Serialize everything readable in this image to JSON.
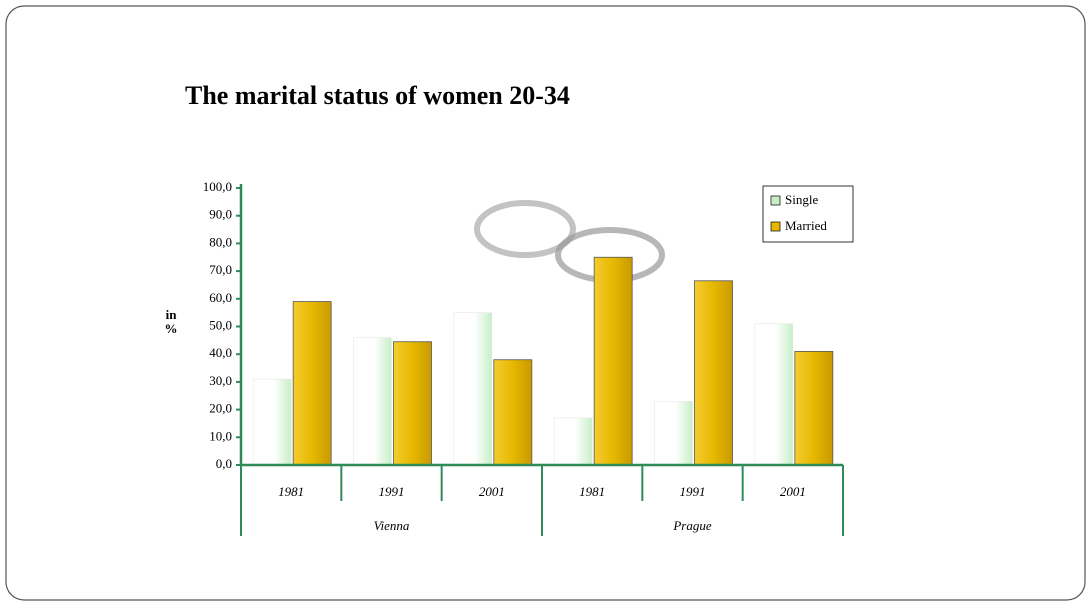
{
  "chart_data": {
    "type": "bar",
    "title": "The marital status of women 20-34",
    "y_label": "in %",
    "groups": [
      {
        "name": "Vienna",
        "categories": [
          "1981",
          "1991",
          "2001"
        ]
      },
      {
        "name": "Prague",
        "categories": [
          "1981",
          "1991",
          "2001"
        ]
      }
    ],
    "series": [
      {
        "name": "Single",
        "color": "#c6efc6",
        "values": [
          31,
          46,
          55,
          17,
          23,
          51
        ]
      },
      {
        "name": "Married",
        "color": "#e6b800",
        "values": [
          59,
          44.5,
          38,
          75,
          66.5,
          41
        ]
      }
    ],
    "ylim": [
      0,
      100
    ],
    "yticks": [
      {
        "value": 0,
        "label": "0,0"
      },
      {
        "value": 10,
        "label": "10,0"
      },
      {
        "value": 20,
        "label": "20,0"
      },
      {
        "value": 30,
        "label": "30,0"
      },
      {
        "value": 40,
        "label": "40,0"
      },
      {
        "value": 50,
        "label": "50,0"
      },
      {
        "value": 60,
        "label": "60,0"
      },
      {
        "value": 70,
        "label": "70,0"
      },
      {
        "value": 80,
        "label": "80,0"
      },
      {
        "value": 90,
        "label": "90,0"
      },
      {
        "value": 100,
        "label": "100,0"
      }
    ],
    "legend": "top-right",
    "axis_color": "#2e8b57"
  }
}
